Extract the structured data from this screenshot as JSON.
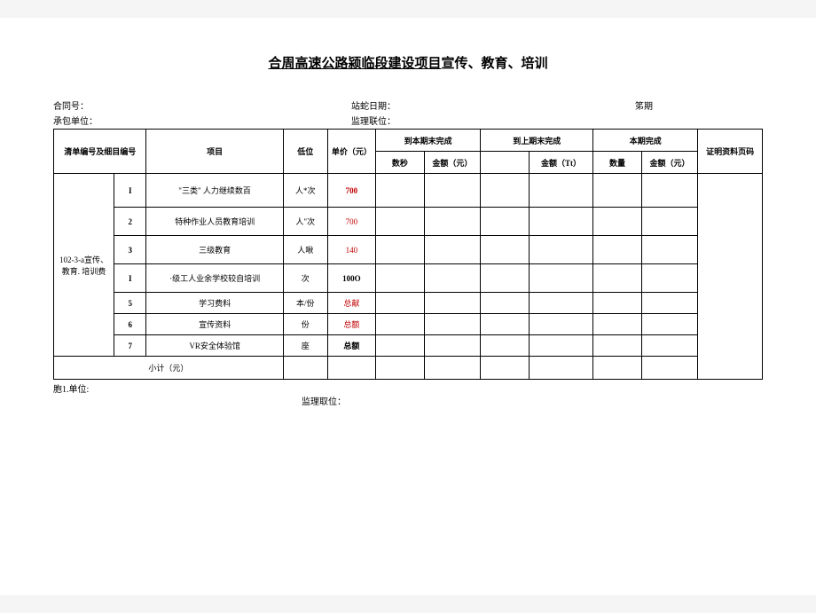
{
  "title": {
    "underlined": "合周高速公路颍临段建设项目",
    "suffix": "宣传、教育、培训"
  },
  "meta": {
    "contract_no": "合同号：",
    "fill_date": "站蛇日期：",
    "period": "笫期",
    "contractor": "承包单位：",
    "supervisor": "监理联位："
  },
  "headers": {
    "code": "清单编号及细目编号",
    "item": "项目",
    "unit": "低位",
    "price": "单价（元）",
    "cur_period": "到本期末完成",
    "prev_period": "到上期末完成",
    "this_period": "本期完成",
    "evidence": "证明资料页码",
    "qty1": "数秒",
    "amt1": "金额（元）",
    "qty2": "",
    "amt2": "金额（Tt）",
    "qty3": "数量",
    "amt3": "金额（元）"
  },
  "group_code": "102-3-a宣传、教育. 培训费",
  "rows": [
    {
      "seq": "I",
      "item": "\"三类\" 人力继续数百",
      "unit": "人*次",
      "price": "700",
      "price_red": true
    },
    {
      "seq": "2",
      "item": "特种作业人员教育培训",
      "unit": "人\"次",
      "price": "700",
      "price_red": true
    },
    {
      "seq": "3",
      "item": "三级教育",
      "unit": "人啾",
      "price": "140",
      "price_red": true
    },
    {
      "seq": "I",
      "item": "·级工人业余学校较自培训",
      "unit": "次",
      "price": "100O",
      "price_red": false
    },
    {
      "seq": "5",
      "item": "学习费料",
      "unit": "本/份",
      "price": "总献",
      "price_red": true
    },
    {
      "seq": "6",
      "item": "宣传资料",
      "unit": "份",
      "price": "总额",
      "price_red": true
    },
    {
      "seq": "7",
      "item": "VR安全体验馆",
      "unit": "座",
      "price": "总额",
      "price_red": false
    }
  ],
  "subtotal": "小计（元）",
  "footer": {
    "left": "胞1.单位:",
    "mid": "监理取位："
  }
}
